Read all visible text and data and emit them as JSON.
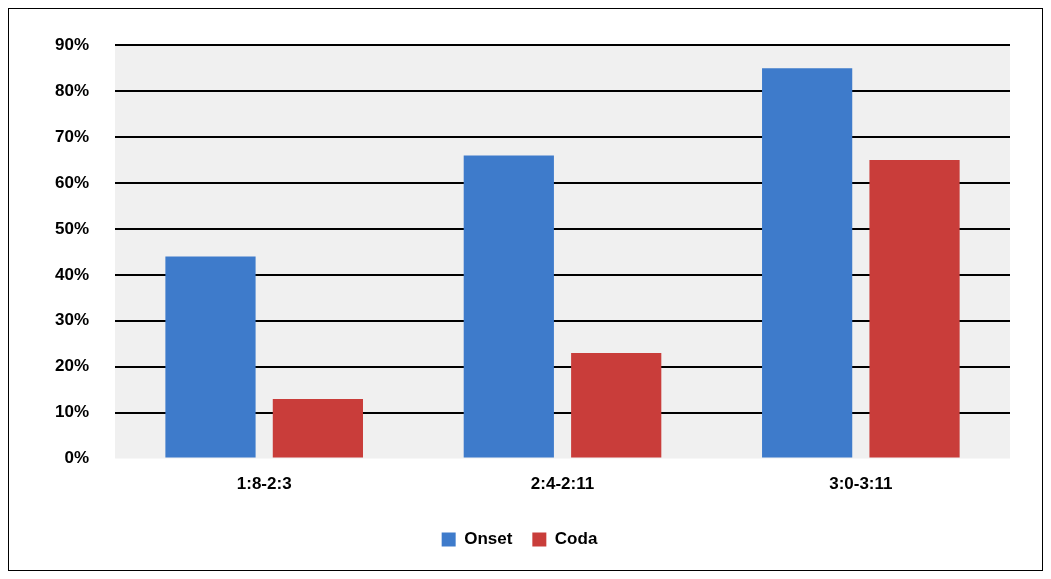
{
  "chart_data": {
    "type": "bar",
    "categories": [
      "1:8-2:3",
      "2:4-2:11",
      "3:0-3:11"
    ],
    "series": [
      {
        "name": "Onset",
        "color": "#3e7bcb",
        "values": [
          44,
          66,
          85
        ]
      },
      {
        "name": "Coda",
        "color": "#c93d3a",
        "values": [
          13,
          23,
          65
        ]
      }
    ],
    "ylim": [
      0,
      90
    ],
    "yticks": [
      {
        "value": 0,
        "label": "0%"
      },
      {
        "value": 10,
        "label": "10%"
      },
      {
        "value": 20,
        "label": "20%"
      },
      {
        "value": 30,
        "label": "30%"
      },
      {
        "value": 40,
        "label": "40%"
      },
      {
        "value": 50,
        "label": "50%"
      },
      {
        "value": 60,
        "label": "60%"
      },
      {
        "value": 70,
        "label": "70%"
      },
      {
        "value": 80,
        "label": "80%"
      },
      {
        "value": 90,
        "label": "90%"
      }
    ],
    "grid": "y",
    "legend": "bottom"
  }
}
